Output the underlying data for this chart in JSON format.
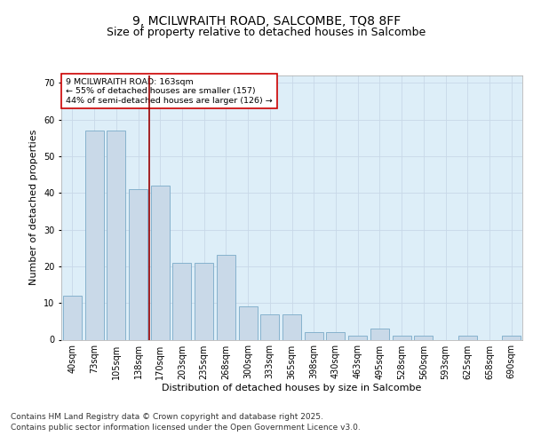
{
  "title_line1": "9, MCILWRAITH ROAD, SALCOMBE, TQ8 8FF",
  "title_line2": "Size of property relative to detached houses in Salcombe",
  "xlabel": "Distribution of detached houses by size in Salcombe",
  "ylabel": "Number of detached properties",
  "categories": [
    "40sqm",
    "73sqm",
    "105sqm",
    "138sqm",
    "170sqm",
    "203sqm",
    "235sqm",
    "268sqm",
    "300sqm",
    "333sqm",
    "365sqm",
    "398sqm",
    "430sqm",
    "463sqm",
    "495sqm",
    "528sqm",
    "560sqm",
    "593sqm",
    "625sqm",
    "658sqm",
    "690sqm"
  ],
  "values": [
    12,
    57,
    57,
    41,
    42,
    21,
    21,
    23,
    9,
    7,
    7,
    2,
    2,
    1,
    3,
    1,
    1,
    0,
    1,
    0,
    1
  ],
  "bar_color": "#c9d9e8",
  "bar_edge_color": "#7aaac8",
  "vline_color": "#990000",
  "annotation_text": "9 MCILWRAITH ROAD: 163sqm\n← 55% of detached houses are smaller (157)\n44% of semi-detached houses are larger (126) →",
  "annotation_box_color": "#ffffff",
  "annotation_box_edge": "#cc0000",
  "ylim": [
    0,
    72
  ],
  "yticks": [
    0,
    10,
    20,
    30,
    40,
    50,
    60,
    70
  ],
  "grid_color": "#c8d8e8",
  "background_color": "#ddeef8",
  "footer_line1": "Contains HM Land Registry data © Crown copyright and database right 2025.",
  "footer_line2": "Contains public sector information licensed under the Open Government Licence v3.0.",
  "title_fontsize": 10,
  "subtitle_fontsize": 9,
  "label_fontsize": 8,
  "tick_fontsize": 7,
  "footer_fontsize": 6.5
}
